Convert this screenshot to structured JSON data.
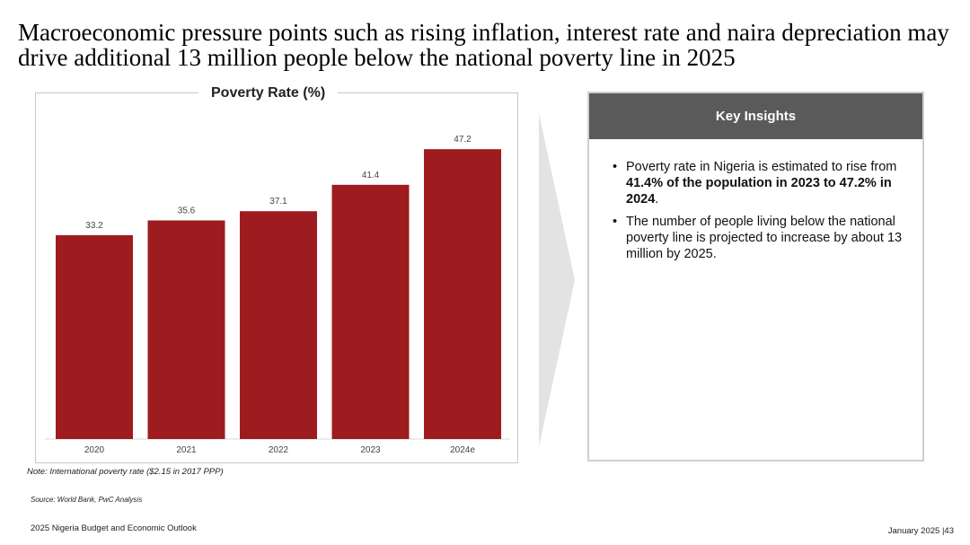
{
  "page": {
    "title": "Macroeconomic pressure points such as rising inflation, interest rate and naira depreciation may drive additional 13 million people below the national poverty line in 2025",
    "note": "Note: International poverty rate ($2.15 in 2017 PPP)",
    "source": "Source: World Bank, PwC Analysis",
    "footer_left": "2025 Nigeria Budget and Economic Outlook",
    "footer_right": "January 2025 |43"
  },
  "chart_data": {
    "type": "bar",
    "title": "Poverty Rate (%)",
    "categories": [
      "2020",
      "2021",
      "2022",
      "2023",
      "2024e"
    ],
    "values": [
      33.2,
      35.6,
      37.1,
      41.4,
      47.2
    ],
    "ylim": [
      0,
      50
    ],
    "xlabel": "",
    "ylabel": "",
    "grid": false,
    "bar_color": "#9e1c1f"
  },
  "insights": {
    "header": "Key Insights",
    "bullet1": {
      "pre": "Poverty rate in Nigeria is estimated to rise from ",
      "bold": "41.4% of the population in 2023 to 47.2% in 2024",
      "post": "."
    },
    "bullet2": "The number of people living below the national poverty line is projected to increase by about 13 million by 2025."
  },
  "colors": {
    "accent": "#9e1c1f",
    "header_bg": "#5a5a5a",
    "arrow": "#e3e3e3"
  }
}
